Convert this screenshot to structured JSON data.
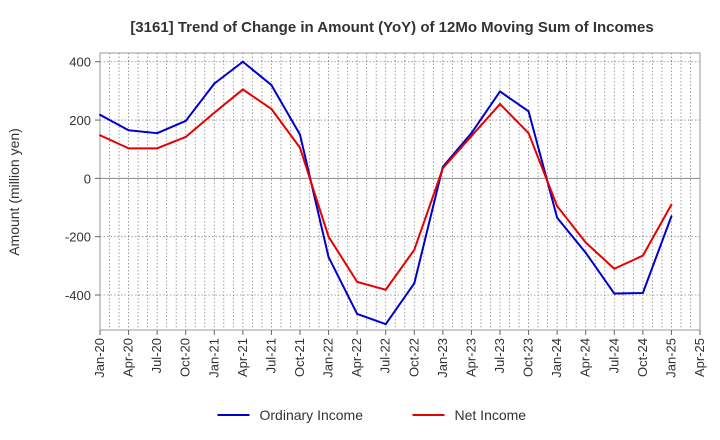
{
  "chart_data": {
    "type": "line",
    "title": "[3161]  Trend of Change in Amount (YoY) of 12Mo Moving Sum of Incomes",
    "ylabel": "Amount (million yen)",
    "xlabel": "",
    "x": [
      "Jan-20",
      "Apr-20",
      "Jul-20",
      "Oct-20",
      "Jan-21",
      "Apr-21",
      "Jul-21",
      "Oct-21",
      "Jan-22",
      "Apr-22",
      "Jul-22",
      "Oct-22",
      "Jan-23",
      "Apr-23",
      "Jul-23",
      "Oct-23",
      "Jan-24",
      "Apr-24",
      "Jul-24",
      "Oct-24",
      "Jan-25",
      "Apr-25"
    ],
    "yticks": [
      400,
      200,
      0,
      -200,
      -400
    ],
    "ylim": [
      -520,
      430
    ],
    "grid": true,
    "legend_position": "bottom",
    "series": [
      {
        "name": "Ordinary Income",
        "color": "#0000cc",
        "values": [
          218,
          165,
          155,
          197,
          325,
          400,
          320,
          150,
          -270,
          -465,
          -500,
          -360,
          40,
          155,
          298,
          230,
          -135,
          -255,
          -395,
          -393,
          -130,
          null
        ]
      },
      {
        "name": "Net Income",
        "color": "#e60000",
        "values": [
          148,
          103,
          103,
          142,
          225,
          305,
          238,
          105,
          -200,
          -355,
          -382,
          -245,
          35,
          145,
          255,
          155,
          -95,
          -220,
          -310,
          -265,
          -90,
          null
        ]
      }
    ]
  }
}
